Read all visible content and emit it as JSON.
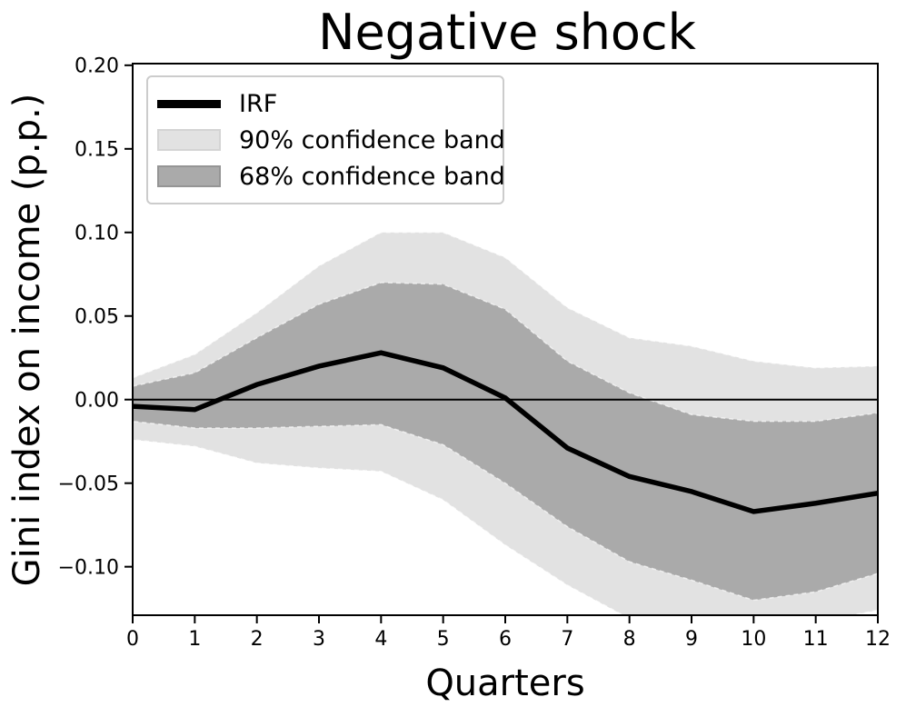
{
  "chart_data": {
    "type": "line",
    "title": "Negative shock",
    "xlabel": "Quarters",
    "ylabel": "Gini index on income (p.p.)",
    "x": [
      0,
      1,
      2,
      3,
      4,
      5,
      6,
      7,
      8,
      9,
      10,
      11,
      12
    ],
    "series": [
      {
        "name": "IRF",
        "kind": "line",
        "color": "#000000",
        "values": [
          -0.004,
          -0.006,
          0.009,
          0.02,
          0.028,
          0.019,
          0.001,
          -0.029,
          -0.046,
          -0.055,
          -0.067,
          -0.062,
          -0.056
        ]
      },
      {
        "name": "90% confidence band",
        "kind": "band",
        "color": "#e2e2e2",
        "upper": [
          0.013,
          0.027,
          0.052,
          0.08,
          0.1,
          0.1,
          0.085,
          0.055,
          0.037,
          0.032,
          0.023,
          0.019,
          0.02
        ],
        "lower": [
          -0.024,
          -0.028,
          -0.038,
          -0.041,
          -0.043,
          -0.06,
          -0.087,
          -0.111,
          -0.131,
          -0.138,
          -0.143,
          -0.133,
          -0.126
        ]
      },
      {
        "name": "68% confidence band",
        "kind": "band",
        "color": "#aaaaaa",
        "upper": [
          0.008,
          0.016,
          0.037,
          0.057,
          0.07,
          0.069,
          0.054,
          0.023,
          0.004,
          -0.009,
          -0.013,
          -0.013,
          -0.008
        ],
        "lower": [
          -0.013,
          -0.017,
          -0.017,
          -0.016,
          -0.015,
          -0.027,
          -0.05,
          -0.076,
          -0.097,
          -0.108,
          -0.12,
          -0.115,
          -0.104
        ]
      }
    ],
    "xlim": [
      0,
      12
    ],
    "ylim": [
      -0.129,
      0.201
    ],
    "xticks": {
      "values": [
        0,
        1,
        2,
        3,
        4,
        5,
        6,
        7,
        8,
        9,
        10,
        11,
        12
      ],
      "labels": [
        "0",
        "1",
        "2",
        "3",
        "4",
        "5",
        "6",
        "7",
        "8",
        "9",
        "10",
        "11",
        "12"
      ]
    },
    "yticks": {
      "values": [
        0.2,
        0.15,
        0.1,
        0.05,
        0.0,
        -0.05,
        -0.1
      ],
      "labels": [
        "0.20",
        "0.15",
        "0.10",
        "0.05",
        "0.00",
        "−0.05",
        "−0.10"
      ]
    },
    "zero_line": true,
    "grid": false,
    "legend_position": "upper-left",
    "colors": {
      "irf_line": "#000000",
      "band_90": "#e2e2e2",
      "band_68": "#aaaaaa",
      "axis": "#000000",
      "text": "#000000",
      "legend_border": "#cccccc"
    }
  },
  "legend": {
    "entries": [
      {
        "label": "IRF",
        "swatch": "line",
        "color": "#000000",
        "edge": "#000000"
      },
      {
        "label": "90% confidence band",
        "swatch": "patch",
        "color": "#e2e2e2",
        "edge": "#d4d4d4"
      },
      {
        "label": "68% confidence band",
        "swatch": "patch",
        "color": "#aaaaaa",
        "edge": "#959595"
      }
    ]
  }
}
